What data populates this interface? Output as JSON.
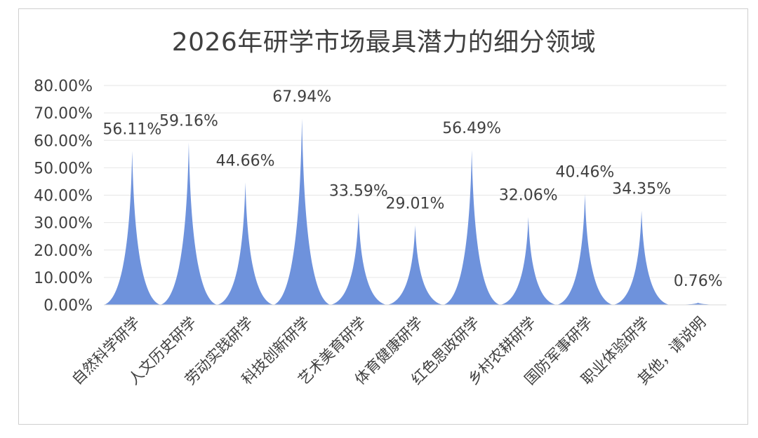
{
  "chart_data": {
    "type": "bar",
    "bar_shape": "pointed-spike",
    "title": "2026年研学市场最具潜力的细分领域",
    "categories": [
      "自然科学研学",
      "人文历史研学",
      "劳动实践研学",
      "科技创新研学",
      "艺术美育研学",
      "体育健康研学",
      "红色思政研学",
      "乡村农耕研学",
      "国防军事研学",
      "职业体验研学",
      "其他，请说明"
    ],
    "values": [
      56.11,
      59.16,
      44.66,
      67.94,
      33.59,
      29.01,
      56.49,
      32.06,
      40.46,
      34.35,
      0.76
    ],
    "data_labels": [
      "56.11%",
      "59.16%",
      "44.66%",
      "67.94%",
      "33.59%",
      "29.01%",
      "56.49%",
      "32.06%",
      "40.46%",
      "34.35%",
      "0.76%"
    ],
    "ylim": [
      0,
      80
    ],
    "yticks": [
      "0.00%",
      "10.00%",
      "20.00%",
      "30.00%",
      "40.00%",
      "50.00%",
      "60.00%",
      "70.00%",
      "80.00%"
    ],
    "grid": true,
    "color": "#6e92dc"
  }
}
